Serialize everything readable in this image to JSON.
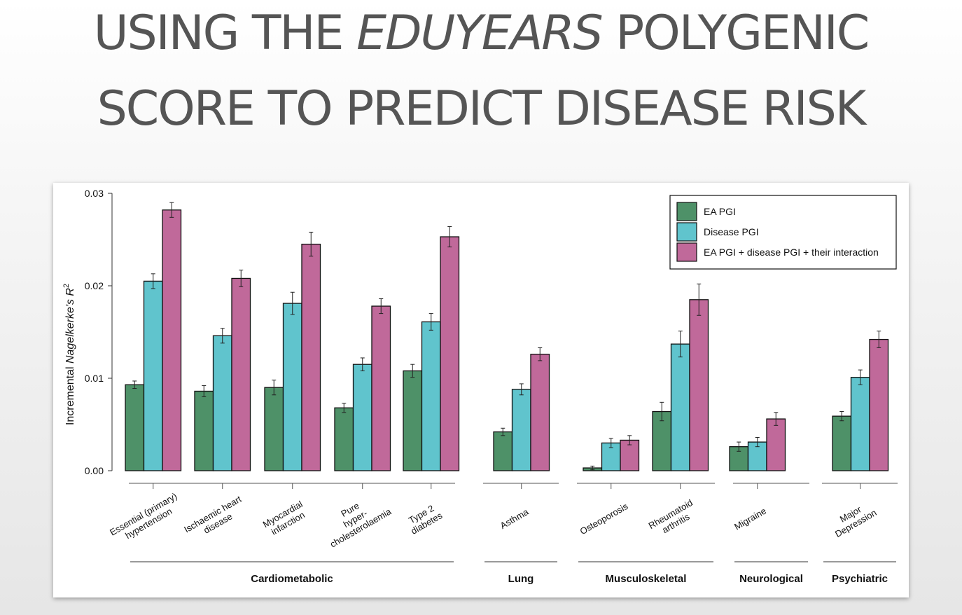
{
  "slide": {
    "title_line1_a": "USING THE ",
    "title_line1_em": "EDUYEARS",
    "title_line1_b": " POLYGENIC",
    "title_line2": "SCORE TO PREDICT DISEASE RISK"
  },
  "chart_data": {
    "type": "bar",
    "ylabel_prefix": "Incremental ",
    "ylabel_italic": "Nagelkerke's R",
    "ylabel_sup": "2",
    "ylim": [
      0,
      0.03
    ],
    "yticks": [
      "0.00",
      "0.01",
      "0.02",
      "0.03"
    ],
    "grid": false,
    "legend_position": "top-right",
    "colors": [
      "#4e9168",
      "#60c4cd",
      "#c0699a"
    ],
    "series": [
      {
        "name": "EA PGI"
      },
      {
        "name": "Disease PGI"
      },
      {
        "name": "EA PGI + disease PGI + their interaction"
      }
    ],
    "groups": [
      {
        "label": "Cardiometabolic",
        "categories": [
          {
            "label": [
              "Essential (primary)",
              "hypertension"
            ],
            "values": [
              0.0093,
              0.0205,
              0.0282
            ],
            "errors": [
              0.0004,
              0.0008,
              0.0008
            ]
          },
          {
            "label": [
              "Ischaemic heart",
              "disease"
            ],
            "values": [
              0.0086,
              0.0146,
              0.0208
            ],
            "errors": [
              0.0006,
              0.0008,
              0.0009
            ]
          },
          {
            "label": [
              "Myocardial",
              "infarction"
            ],
            "values": [
              0.009,
              0.0181,
              0.0245
            ],
            "errors": [
              0.0008,
              0.0012,
              0.0013
            ]
          },
          {
            "label": [
              "Pure",
              "hyper-",
              "cholesterolaemia"
            ],
            "values": [
              0.0068,
              0.0115,
              0.0178
            ],
            "errors": [
              0.0005,
              0.0007,
              0.0008
            ]
          },
          {
            "label": [
              "Type 2",
              "diabetes"
            ],
            "values": [
              0.0108,
              0.0161,
              0.0253
            ],
            "errors": [
              0.0007,
              0.0009,
              0.0011
            ]
          }
        ]
      },
      {
        "label": "Lung",
        "categories": [
          {
            "label": [
              "Asthma"
            ],
            "values": [
              0.0042,
              0.0088,
              0.0126
            ],
            "errors": [
              0.0004,
              0.0006,
              0.0007
            ]
          }
        ]
      },
      {
        "label": "Musculoskeletal",
        "categories": [
          {
            "label": [
              "Osteoporosis"
            ],
            "values": [
              0.0003,
              0.003,
              0.0033
            ],
            "errors": [
              0.0002,
              0.0005,
              0.0005
            ]
          },
          {
            "label": [
              "Rheumatoid",
              "arthritis"
            ],
            "values": [
              0.0064,
              0.0137,
              0.0185
            ],
            "errors": [
              0.001,
              0.0014,
              0.0017
            ]
          }
        ]
      },
      {
        "label": "Neurological",
        "categories": [
          {
            "label": [
              "Migraine"
            ],
            "values": [
              0.0026,
              0.0031,
              0.0056
            ],
            "errors": [
              0.0005,
              0.0005,
              0.0007
            ]
          }
        ]
      },
      {
        "label": "Psychiatric",
        "categories": [
          {
            "label": [
              "Major",
              "Depression"
            ],
            "values": [
              0.0059,
              0.0101,
              0.0142
            ],
            "errors": [
              0.0005,
              0.0008,
              0.0009
            ]
          }
        ]
      }
    ]
  }
}
